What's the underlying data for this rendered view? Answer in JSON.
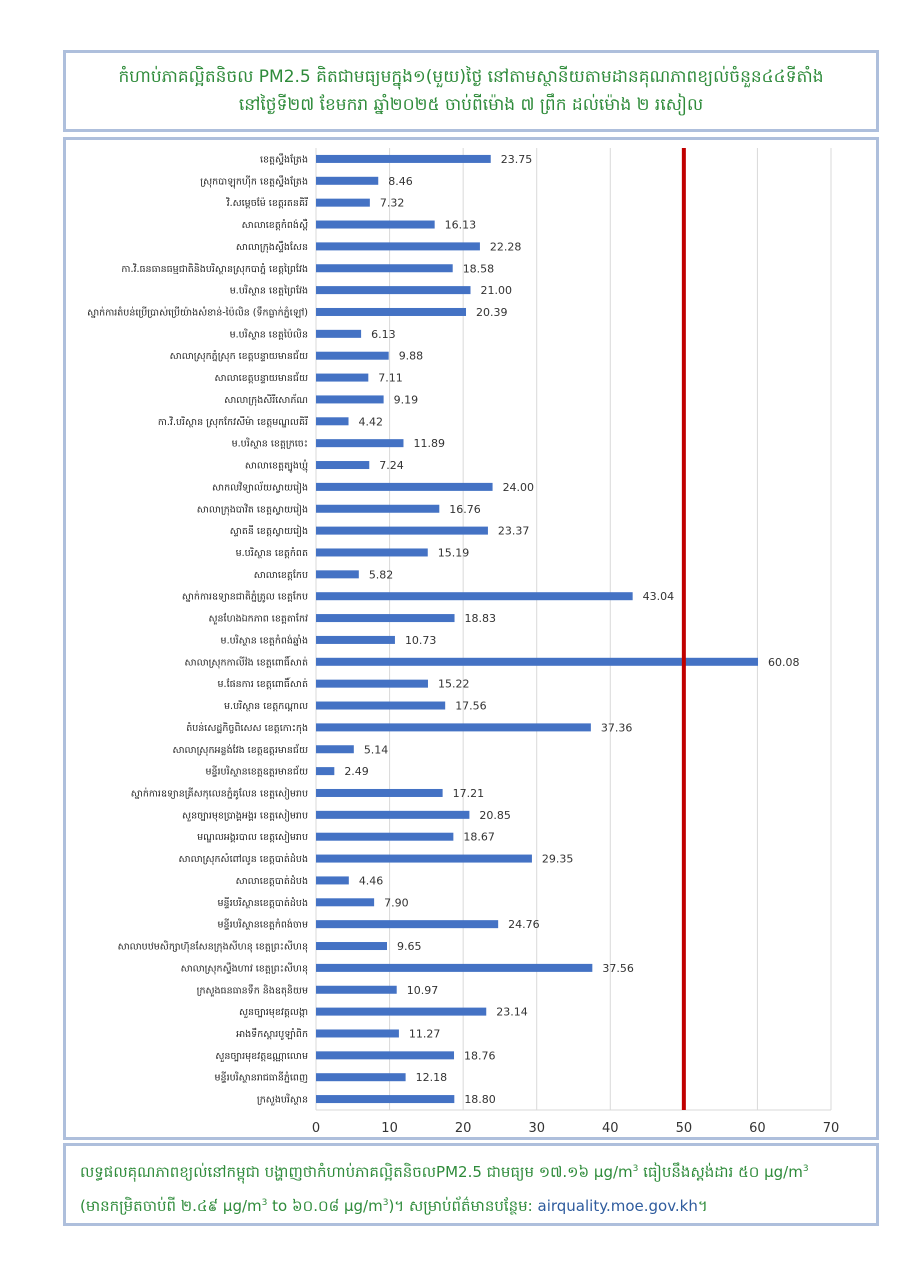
{
  "header": {
    "line1": "កំហាប់ភាគល្អិតនិចល PM2.5 គិតជាមធ្យមក្នុង១(មួយ)ថ្ងៃ នៅតាមស្ថានីយតាមដានគុណភាពខ្យល់ចំនួន៤៤ទីតាំង",
    "line2": "នៅថ្ងៃទី២៧ ខែមករា ឆ្នាំ២០២៥ ចាប់ពីម៉ោង ៧ ព្រឹក ដល់ម៉ោង ២ រសៀល"
  },
  "footer": {
    "line1_text": "លទ្ធផលគុណភាពខ្យល់នៅកម្ពុជា បង្ហាញថាកំហាប់ភាគល្អិតនិចលPM2.5 ជាមធ្យម ១៧.១៦ µg/m",
    "line1_sup": "3",
    "line1_mid": " ធៀបនឹងស្តង់ដារ ៥០ µg/m",
    "line1_sup2": "3",
    "line2_a": "(មានកម្រិតចាប់ពី ២.៤៩ µg/m",
    "line2_sup_a": "3",
    "line2_b": " to ៦០.០៨ µg/m",
    "line2_sup_b": "3",
    "line2_c": ")។ សម្រាប់ព័ត៌មានបន្ថែម: ",
    "link": "airquality.moe.gov.kh",
    "tail": "។"
  },
  "chart_data": {
    "type": "bar",
    "orientation": "horizontal",
    "xlim": [
      0,
      70
    ],
    "xticks": [
      "0",
      "10",
      "20",
      "30",
      "40",
      "50",
      "60",
      "70"
    ],
    "standard_line": 50,
    "bar_color": "#4472c4",
    "standard_line_color": "#c00000",
    "grid": true,
    "categories": [
      "ខេត្តស្ទឹងត្រែង",
      "ស្រុកបាឡុកហ៊ីក ខេត្តស្ទឹងត្រែង",
      "វិ.សម្តេចម៉ែ ខេត្តរតនគិរី",
      "សាលាខេត្តកំពង់ស្ពឺ",
      "សាលាក្រុងស្ទឹងសែន",
      "កា.វិ.ធនធានធម្មជាតិនិងបរិស្ថានស្រុកបាភ្នំ ខេត្តព្រៃវែង",
      "ម.បរិស្ថាន ខេត្តព្រៃវែង",
      "ស្នាក់ការតំបន់ប្រើប្រាស់ប្រើយ៉ាងសំខាន់-ប៉ៃលិន (ទឹកធ្លាក់ភ្នំឡៅ)",
      "ម.បរិស្ថាន ខេត្តប៉ៃលិន",
      "សាលាស្រុកភ្នំស្រុក ខេត្តបន្ទាយមានជ័យ",
      "សាលាខេត្តបន្ទាយមានជ័យ",
      "សាលាក្រុងសិរីសោភ័ណ",
      "កា.វិ.បរិស្ថាន ស្រុកកែវសីម៉ា ខេត្តមណ្ឌលគិរី",
      "ម.បរិស្ថាន ខេត្តក្រចេះ",
      "សាលាខេត្តត្បូងឃ្មុំ",
      "សាកលវិទ្យាល័យស្វាយរៀង",
      "សាលាក្រុងបាវិត ខេត្តស្វាយរៀង",
      "ស្ទាតនី ខេត្តស្វាយរៀង",
      "ម.បរិស្ថាន ខេត្តកំពត",
      "សាលាខេត្តកែប",
      "ស្នាក់ការឧទ្យានជាតិភ្នំត្រូល ខេត្តកែប",
      "សួនហែងឯកភាព ខេត្តតាកែវ",
      "ម.បរិស្ថាន ខេត្តកំពង់ឆ្នាំង",
      "សាលាស្រុកកាលីវ៉ង ខេត្តពោធិ៍សាត់",
      "ម.ផែនការ ខេត្តពោធិ៍សាត់",
      "ម.បរិស្ថាន ខេត្តកណ្តាល",
      "តំបន់សេដ្ឋកិច្ចពិសេស ខេត្តកោះកុង",
      "សាលាស្រុកអន្លង់វែង ខេត្តឧត្តរមានជ័យ",
      "មន្ទីរបរិស្ថានខេត្តឧត្តរមានជ័យ",
      "ស្នាក់ការឧទ្យានគ្រីសកុលេនភ្នំគូលែន ខេត្តសៀមរាប",
      "សួនច្បារមុខប្រាង្គអង្គរ ខេត្តសៀមរាប",
      "មណ្ឌលអង្គរបាល ខេត្តសៀមរាប",
      "សាលាស្រុកសំពៅលូន ខេត្តបាត់ដំបង",
      "សាលាខេត្តបាត់ដំបង",
      "មន្ទីរបរិស្ថានខេត្តបាត់ដំបង",
      "មន្ទីរបរិស្ថានខេត្តកំពង់ចាម",
      "សាលាបឋមសិក្សាហ៊ុនសែនក្រុងសីហនុ ខេត្តព្រះសីហនុ",
      "សាលាស្រុកស្ទឹងហាវ ខេត្តព្រះសីហនុ",
      "ក្រសួងធនធានទឹក និងឧតុនិយម",
      "សួនច្បារមុខវត្តលង្កា",
      "អាងទឹកស្តារបូឡាំពិក",
      "សួនច្បារមុខវត្តឧណ្ណាលោម",
      "មន្ទីរបរិស្ថានរាជធានីភ្នំពេញ",
      "ក្រសួងបរិស្ថាន"
    ],
    "values": [
      23.75,
      8.46,
      7.32,
      16.13,
      22.28,
      18.58,
      21.0,
      20.39,
      6.13,
      9.88,
      7.11,
      9.19,
      4.42,
      11.89,
      7.24,
      24.0,
      16.76,
      23.37,
      15.19,
      5.82,
      43.04,
      18.83,
      10.73,
      60.08,
      15.22,
      17.56,
      37.36,
      5.14,
      2.49,
      17.21,
      20.85,
      18.67,
      29.35,
      4.46,
      7.9,
      24.76,
      9.65,
      37.56,
      10.97,
      23.14,
      11.27,
      18.76,
      12.18,
      18.8
    ],
    "value_labels": [
      "23.75",
      "8.46",
      "7.32",
      "16.13",
      "22.28",
      "18.58",
      "21.00",
      "20.39",
      "6.13",
      "9.88",
      "7.11",
      "9.19",
      "4.42",
      "11.89",
      "7.24",
      "24.00",
      "16.76",
      "23.37",
      "15.19",
      "5.82",
      "43.04",
      "18.83",
      "10.73",
      "60.08",
      "15.22",
      "17.56",
      "37.36",
      "5.14",
      "2.49",
      "17.21",
      "20.85",
      "18.67",
      "29.35",
      "4.46",
      "7.90",
      "24.76",
      "9.65",
      "37.56",
      "10.97",
      "23.14",
      "11.27",
      "18.76",
      "12.18",
      "18.80"
    ]
  }
}
